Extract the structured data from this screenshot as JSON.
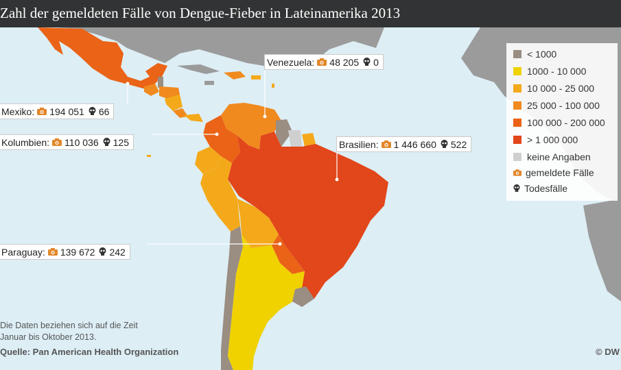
{
  "title": "Zahl der gemeldeten Fälle von Dengue-Fieber in Lateinamerika 2013",
  "colors": {
    "ocean": "#ddeef5",
    "other_land": "#9b9b9b",
    "lt_1000": "#9a8d82",
    "c_1000_10000": "#efd200",
    "c_10000_25000": "#f4a91a",
    "c_25000_100000": "#f08a1e",
    "c_100000_200000": "#ea6316",
    "gt_1000000": "#e2461b",
    "no_data": "#cfcfcf",
    "cases_icon": "#e2872b",
    "deaths_icon": "#333333"
  },
  "callouts": [
    {
      "country": "Mexiko:",
      "cases": "194 051",
      "deaths": "66"
    },
    {
      "country": "Venezuela:",
      "cases": "48 205",
      "deaths": "0"
    },
    {
      "country": "Kolumbien:",
      "cases": "110 036",
      "deaths": "125"
    },
    {
      "country": "Brasilien:",
      "cases": "1 446 660",
      "deaths": "522"
    },
    {
      "country": "Paraguay:",
      "cases": "139 672",
      "deaths": "242"
    }
  ],
  "legend": {
    "items": [
      {
        "label": "< 1000",
        "color": "#9a8d82"
      },
      {
        "label": "1000 - 10 000",
        "color": "#efd200"
      },
      {
        "label": "10 000 - 25 000",
        "color": "#f4a91a"
      },
      {
        "label": "25 000 - 100 000",
        "color": "#f08a1e"
      },
      {
        "label": "100 000 - 200 000",
        "color": "#ea6316"
      },
      {
        "label": "> 1 000 000",
        "color": "#e2461b"
      },
      {
        "label": "keine Angaben",
        "color": "#cfcfcf"
      }
    ],
    "cases_label": "gemeldete Fälle",
    "deaths_label": "Todesfälle"
  },
  "note_line1": "Die Daten beziehen sich auf die Zeit",
  "note_line2": "Januar bis Oktober 2013.",
  "source": "Quelle: Pan American Health Organization",
  "credit": "© DW"
}
